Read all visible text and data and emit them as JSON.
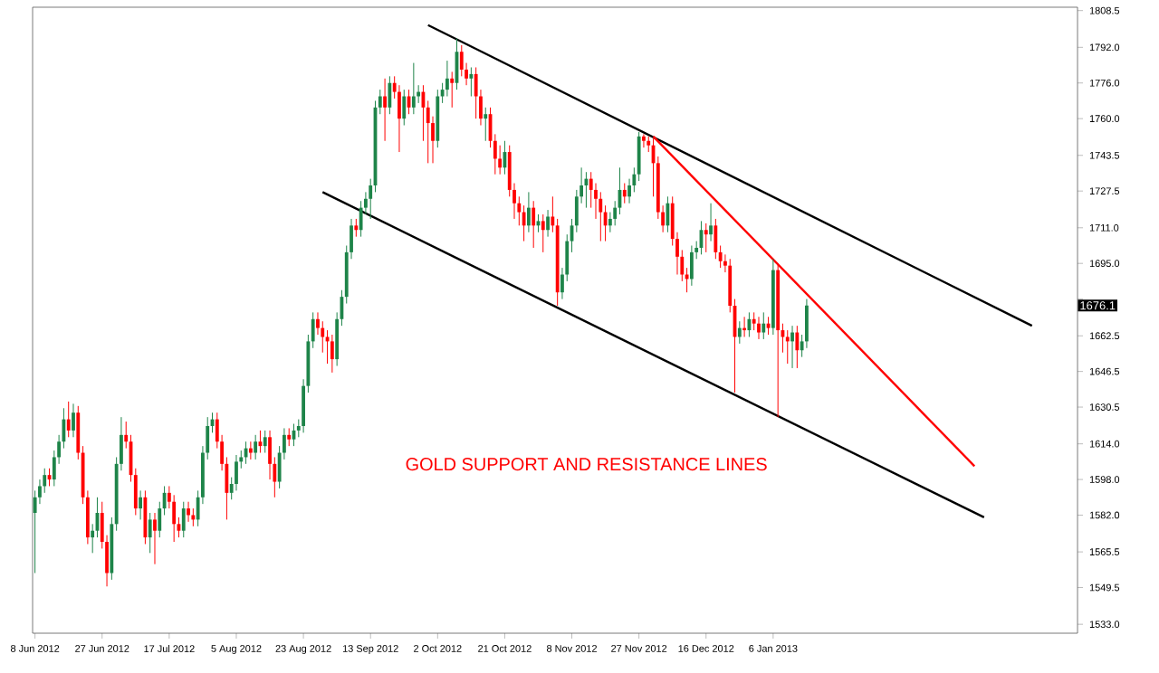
{
  "chart_data": {
    "type": "candlestick",
    "annotations": [
      "GOLD SUPPORT AND RESISTANCE LINES",
      {
        "text": "1676.1",
        "y": 1676.1
      }
    ],
    "ylim": [
      1529,
      1810
    ],
    "categories": [
      "8 Jun 2012",
      null,
      null,
      null,
      null,
      null,
      null,
      null,
      null,
      null,
      null,
      null,
      null,
      null,
      "27 Jun 2012",
      null,
      null,
      null,
      null,
      null,
      null,
      null,
      null,
      null,
      null,
      null,
      null,
      null,
      "17 Jul 2012",
      null,
      null,
      null,
      null,
      null,
      null,
      null,
      null,
      null,
      null,
      null,
      null,
      null,
      "5 Aug 2012",
      null,
      null,
      null,
      null,
      null,
      null,
      null,
      null,
      null,
      null,
      null,
      null,
      null,
      "23 Aug 2012",
      null,
      null,
      null,
      null,
      null,
      null,
      null,
      null,
      null,
      null,
      null,
      null,
      null,
      "13 Sep 2012",
      null,
      null,
      null,
      null,
      null,
      null,
      null,
      null,
      null,
      null,
      null,
      null,
      null,
      "2 Oct 2012",
      null,
      null,
      null,
      null,
      null,
      null,
      null,
      null,
      null,
      null,
      null,
      null,
      null,
      "21 Oct 2012",
      null,
      null,
      null,
      null,
      null,
      null,
      null,
      null,
      null,
      null,
      null,
      null,
      null,
      "8 Nov 2012",
      null,
      null,
      null,
      null,
      null,
      null,
      null,
      null,
      null,
      null,
      null,
      null,
      null,
      "27 Nov 2012",
      null,
      null,
      null,
      null,
      null,
      null,
      null,
      null,
      null,
      null,
      null,
      null,
      null,
      "16 Dec 2012",
      null,
      null,
      null,
      null,
      null,
      null,
      null,
      null,
      null,
      null,
      null,
      null,
      null,
      "6 Jan 2013",
      null,
      null,
      null,
      null,
      null,
      null,
      null,
      null,
      null,
      null,
      null,
      null,
      null,
      null,
      null,
      null,
      null,
      null,
      null,
      null,
      null,
      null,
      null,
      null,
      null,
      null,
      null,
      null,
      null,
      null,
      null,
      null,
      null,
      null,
      null,
      null,
      null,
      null,
      null,
      null,
      null,
      null,
      null,
      null,
      null,
      null,
      null,
      null,
      null,
      null,
      null,
      null,
      null,
      null,
      null,
      null,
      null,
      null,
      null,
      null,
      null,
      null,
      null
    ],
    "yticks": [
      {
        "value": 1533,
        "label": "1533.0"
      },
      1549.5,
      1565.5,
      {
        "value": 1582,
        "label": "1582.0"
      },
      {
        "value": 1598,
        "label": "1598.0"
      },
      {
        "value": 1614,
        "label": "1614.0"
      },
      1630.5,
      1646.5,
      1662.5,
      {
        "value": 1679,
        "label": null
      },
      {
        "value": 1695,
        "label": "1695.0"
      },
      {
        "value": 1711,
        "label": "1711.0"
      },
      1727.5,
      1743.5,
      {
        "value": 1760,
        "label": "1760.0"
      },
      {
        "value": 1776,
        "label": "1776.0"
      },
      {
        "value": 1792,
        "label": "1792.0"
      },
      1808.5
    ],
    "series": [
      {
        "type": "candlestick",
        "ohlc": [
          [
            1583,
            1593,
            1556,
            1590
          ],
          [
            1590,
            1598,
            1587,
            1595
          ],
          [
            1595,
            1603,
            1592,
            1600
          ],
          [
            1600,
            1603,
            1595,
            1598
          ],
          [
            1598,
            1611,
            1595,
            1608
          ],
          [
            1608,
            1618,
            1605,
            1615
          ],
          [
            1615,
            1630,
            1612,
            1625
          ],
          [
            1625,
            1633,
            1617,
            1620
          ],
          [
            1620,
            1632,
            1617,
            1628
          ],
          [
            1628,
            1631,
            1607,
            1610
          ],
          [
            1610,
            1613,
            1587,
            1590
          ],
          [
            1590,
            1593,
            1569,
            1572
          ],
          [
            1572,
            1578,
            1565,
            1575
          ],
          [
            1575,
            1590,
            1572,
            1583
          ],
          [
            1583,
            1588,
            1567,
            1570
          ],
          [
            1570,
            1573,
            1550,
            1556
          ],
          [
            1556,
            1581,
            1553,
            1578
          ],
          [
            1578,
            1608,
            1575,
            1605
          ],
          [
            1605,
            1626,
            1602,
            1618
          ],
          [
            1618,
            1624,
            1612,
            1615
          ],
          [
            1615,
            1618,
            1597,
            1600
          ],
          [
            1600,
            1603,
            1582,
            1585
          ],
          [
            1585,
            1593,
            1580,
            1590
          ],
          [
            1590,
            1593,
            1569,
            1572
          ],
          [
            1572,
            1583,
            1565,
            1580
          ],
          [
            1580,
            1583,
            1560,
            1575
          ],
          [
            1575,
            1588,
            1572,
            1585
          ],
          [
            1585,
            1595,
            1582,
            1592
          ],
          [
            1592,
            1595,
            1585,
            1588
          ],
          [
            1588,
            1591,
            1570,
            1578
          ],
          [
            1578,
            1581,
            1572,
            1575
          ],
          [
            1575,
            1588,
            1572,
            1585
          ],
          [
            1585,
            1588,
            1579,
            1582
          ],
          [
            1582,
            1585,
            1577,
            1580
          ],
          [
            1580,
            1593,
            1577,
            1590
          ],
          [
            1590,
            1613,
            1587,
            1610
          ],
          [
            1610,
            1626,
            1607,
            1622
          ],
          [
            1622,
            1628,
            1619,
            1625
          ],
          [
            1625,
            1628,
            1612,
            1615
          ],
          [
            1615,
            1618,
            1602,
            1605
          ],
          [
            1605,
            1608,
            1580,
            1592
          ],
          [
            1592,
            1599,
            1589,
            1596
          ],
          [
            1596,
            1609,
            1593,
            1606
          ],
          [
            1606,
            1611,
            1603,
            1608
          ],
          [
            1608,
            1615,
            1605,
            1612
          ],
          [
            1612,
            1615,
            1607,
            1610
          ],
          [
            1610,
            1618,
            1607,
            1615
          ],
          [
            1615,
            1620,
            1610,
            1613
          ],
          [
            1613,
            1620,
            1610,
            1617
          ],
          [
            1617,
            1620,
            1598,
            1605
          ],
          [
            1605,
            1608,
            1590,
            1597
          ],
          [
            1597,
            1613,
            1594,
            1610
          ],
          [
            1610,
            1621,
            1607,
            1618
          ],
          [
            1618,
            1621,
            1613,
            1616
          ],
          [
            1616,
            1623,
            1613,
            1620
          ],
          [
            1620,
            1625,
            1617,
            1622
          ],
          [
            1622,
            1643,
            1619,
            1640
          ],
          [
            1640,
            1663,
            1637,
            1660
          ],
          [
            1660,
            1673,
            1657,
            1670
          ],
          [
            1670,
            1673,
            1663,
            1666
          ],
          [
            1666,
            1669,
            1655,
            1662
          ],
          [
            1662,
            1665,
            1650,
            1660
          ],
          [
            1660,
            1663,
            1646,
            1652
          ],
          [
            1652,
            1673,
            1649,
            1670
          ],
          [
            1670,
            1683,
            1667,
            1680
          ],
          [
            1680,
            1703,
            1677,
            1700
          ],
          [
            1700,
            1715,
            1697,
            1712
          ],
          [
            1712,
            1715,
            1707,
            1710
          ],
          [
            1710,
            1723,
            1707,
            1720
          ],
          [
            1720,
            1727,
            1717,
            1724
          ],
          [
            1724,
            1733,
            1715,
            1730
          ],
          [
            1730,
            1768,
            1727,
            1765
          ],
          [
            1765,
            1773,
            1762,
            1770
          ],
          [
            1770,
            1778,
            1750,
            1765
          ],
          [
            1765,
            1779,
            1762,
            1776
          ],
          [
            1776,
            1779,
            1769,
            1772
          ],
          [
            1772,
            1775,
            1745,
            1760
          ],
          [
            1760,
            1773,
            1757,
            1770
          ],
          [
            1770,
            1773,
            1762,
            1765
          ],
          [
            1765,
            1785,
            1762,
            1770
          ],
          [
            1770,
            1775,
            1767,
            1772
          ],
          [
            1772,
            1775,
            1750,
            1765
          ],
          [
            1765,
            1768,
            1740,
            1758
          ],
          [
            1758,
            1761,
            1740,
            1750
          ],
          [
            1750,
            1773,
            1747,
            1770
          ],
          [
            1770,
            1776,
            1767,
            1773
          ],
          [
            1773,
            1786,
            1770,
            1778
          ],
          [
            1778,
            1781,
            1765,
            1776
          ],
          [
            1776,
            1796,
            1773,
            1790
          ],
          [
            1790,
            1793,
            1779,
            1782
          ],
          [
            1782,
            1785,
            1775,
            1778
          ],
          [
            1778,
            1783,
            1770,
            1780
          ],
          [
            1780,
            1783,
            1760,
            1770
          ],
          [
            1770,
            1773,
            1757,
            1760
          ],
          [
            1760,
            1765,
            1750,
            1762
          ],
          [
            1762,
            1765,
            1747,
            1750
          ],
          [
            1750,
            1753,
            1735,
            1742
          ],
          [
            1742,
            1748,
            1735,
            1738
          ],
          [
            1738,
            1750,
            1735,
            1745
          ],
          [
            1745,
            1748,
            1725,
            1728
          ],
          [
            1728,
            1731,
            1715,
            1722
          ],
          [
            1722,
            1725,
            1712,
            1718
          ],
          [
            1718,
            1721,
            1705,
            1712
          ],
          [
            1712,
            1727,
            1709,
            1720
          ],
          [
            1720,
            1723,
            1702,
            1712
          ],
          [
            1712,
            1717,
            1709,
            1714
          ],
          [
            1714,
            1717,
            1700,
            1710
          ],
          [
            1710,
            1719,
            1707,
            1716
          ],
          [
            1716,
            1725,
            1709,
            1712
          ],
          [
            1712,
            1715,
            1676,
            1682
          ],
          [
            1682,
            1693,
            1679,
            1690
          ],
          [
            1690,
            1708,
            1687,
            1705
          ],
          [
            1705,
            1715,
            1700,
            1712
          ],
          [
            1712,
            1728,
            1709,
            1725
          ],
          [
            1725,
            1738,
            1722,
            1730
          ],
          [
            1730,
            1736,
            1720,
            1733
          ],
          [
            1733,
            1736,
            1720,
            1728
          ],
          [
            1728,
            1731,
            1715,
            1724
          ],
          [
            1724,
            1727,
            1705,
            1718
          ],
          [
            1718,
            1721,
            1705,
            1712
          ],
          [
            1712,
            1718,
            1709,
            1715
          ],
          [
            1715,
            1723,
            1712,
            1720
          ],
          [
            1720,
            1738,
            1717,
            1728
          ],
          [
            1728,
            1731,
            1722,
            1725
          ],
          [
            1725,
            1733,
            1722,
            1730
          ],
          [
            1730,
            1738,
            1727,
            1735
          ],
          [
            1735,
            1754,
            1732,
            1752
          ],
          [
            1752,
            1753,
            1747,
            1750
          ],
          [
            1750,
            1752,
            1745,
            1748
          ],
          [
            1748,
            1751,
            1725,
            1740
          ],
          [
            1740,
            1743,
            1715,
            1718
          ],
          [
            1718,
            1721,
            1709,
            1712
          ],
          [
            1712,
            1725,
            1709,
            1722
          ],
          [
            1722,
            1725,
            1703,
            1706
          ],
          [
            1706,
            1709,
            1690,
            1698
          ],
          [
            1698,
            1701,
            1687,
            1690
          ],
          [
            1690,
            1693,
            1682,
            1688
          ],
          [
            1688,
            1703,
            1685,
            1700
          ],
          [
            1700,
            1705,
            1697,
            1702
          ],
          [
            1702,
            1714,
            1699,
            1710
          ],
          [
            1710,
            1713,
            1700,
            1708
          ],
          [
            1708,
            1722,
            1705,
            1712
          ],
          [
            1712,
            1715,
            1697,
            1700
          ],
          [
            1700,
            1703,
            1693,
            1696
          ],
          [
            1696,
            1699,
            1691,
            1694
          ],
          [
            1694,
            1697,
            1673,
            1676
          ],
          [
            1676,
            1679,
            1637,
            1662
          ],
          [
            1662,
            1669,
            1659,
            1666
          ],
          [
            1666,
            1671,
            1662,
            1665
          ],
          [
            1665,
            1673,
            1662,
            1670
          ],
          [
            1670,
            1673,
            1665,
            1668
          ],
          [
            1668,
            1671,
            1661,
            1664
          ],
          [
            1664,
            1673,
            1661,
            1668
          ],
          [
            1668,
            1671,
            1663,
            1666
          ],
          [
            1666,
            1697,
            1663,
            1692
          ],
          [
            1692,
            1695,
            1626,
            1665
          ],
          [
            1665,
            1668,
            1655,
            1662
          ],
          [
            1662,
            1665,
            1650,
            1660
          ],
          [
            1660,
            1667,
            1648,
            1664
          ],
          [
            1664,
            1667,
            1648,
            1656
          ],
          [
            1656,
            1663,
            1653,
            1660
          ],
          [
            1660,
            1679,
            1657,
            1676.1
          ],
          null,
          null,
          null,
          null,
          null,
          null,
          null,
          null,
          null,
          null,
          null,
          null,
          null,
          null,
          null,
          null,
          null,
          null,
          null,
          null,
          null,
          null,
          null,
          null,
          null,
          null,
          null,
          null,
          null,
          null,
          null,
          null,
          null,
          null,
          null,
          null,
          null,
          null,
          null,
          null,
          null,
          null,
          null,
          null,
          null,
          null,
          null,
          null,
          null,
          null,
          null,
          null,
          null,
          null,
          null,
          null
        ],
        "colors": [
          "#1e8449",
          "#1e8449",
          "#1e8449",
          "#ff0000",
          "#1e8449",
          "#1e8449",
          "#1e8449",
          "#ff0000",
          "#1e8449",
          "#ff0000",
          "#ff0000",
          "#ff0000",
          "#1e8449",
          "#1e8449",
          "#ff0000",
          "#ff0000",
          "#1e8449",
          "#1e8449",
          "#1e8449",
          "#ff0000",
          "#ff0000",
          "#ff0000",
          "#1e8449",
          "#ff0000",
          "#1e8449",
          "#ff0000",
          "#1e8449",
          "#1e8449",
          "#ff0000",
          "#ff0000",
          "#ff0000",
          "#1e8449",
          "#ff0000",
          "#ff0000",
          "#1e8449",
          "#1e8449",
          "#1e8449",
          "#1e8449",
          "#ff0000",
          "#ff0000",
          "#ff0000",
          "#1e8449",
          "#1e8449",
          "#1e8449",
          "#1e8449",
          "#ff0000",
          "#1e8449",
          "#ff0000",
          "#1e8449",
          "#ff0000",
          "#ff0000",
          "#1e8449",
          "#1e8449",
          "#ff0000",
          "#1e8449",
          "#1e8449",
          "#1e8449",
          "#1e8449",
          "#1e8449",
          "#ff0000",
          "#ff0000",
          "#ff0000",
          "#ff0000",
          "#1e8449",
          "#1e8449",
          "#1e8449",
          "#1e8449",
          "#ff0000",
          "#1e8449",
          "#1e8449",
          "#1e8449",
          "#1e8449",
          "#1e8449",
          "#ff0000",
          "#1e8449",
          "#ff0000",
          "#ff0000",
          "#1e8449",
          "#ff0000",
          "#1e8449",
          "#1e8449",
          "#ff0000",
          "#ff0000",
          "#ff0000",
          "#1e8449",
          "#1e8449",
          "#1e8449",
          "#ff0000",
          "#1e8449",
          "#ff0000",
          "#ff0000",
          "#1e8449",
          "#ff0000",
          "#ff0000",
          "#1e8449",
          "#ff0000",
          "#ff0000",
          "#ff0000",
          "#1e8449",
          "#ff0000",
          "#ff0000",
          "#ff0000",
          "#ff0000",
          "#1e8449",
          "#ff0000",
          "#1e8449",
          "#ff0000",
          "#1e8449",
          "#ff0000",
          "#ff0000",
          "#1e8449",
          "#1e8449",
          "#1e8449",
          "#1e8449",
          "#1e8449",
          "#1e8449",
          "#ff0000",
          "#ff0000",
          "#ff0000",
          "#ff0000",
          "#1e8449",
          "#1e8449",
          "#1e8449",
          "#ff0000",
          "#1e8449",
          "#1e8449",
          "#1e8449",
          "#ff0000",
          "#ff0000",
          "#ff0000",
          "#ff0000",
          "#ff0000",
          "#1e8449",
          "#ff0000",
          "#ff0000",
          "#ff0000",
          "#ff0000",
          "#1e8449",
          "#1e8449",
          "#1e8449",
          "#ff0000",
          "#1e8449",
          "#ff0000",
          "#ff0000",
          "#ff0000",
          "#ff0000",
          "#ff0000",
          "#1e8449",
          "#ff0000",
          "#1e8449",
          "#ff0000",
          "#ff0000",
          "#1e8449",
          "#ff0000",
          "#1e8449",
          "#ff0000",
          "#ff0000",
          "#ff0000",
          "#1e8449",
          "#ff0000",
          "#1e8449",
          "#1e8449",
          null,
          null,
          null,
          null,
          null,
          null,
          null,
          null,
          null,
          null,
          null,
          null,
          null,
          null,
          null,
          null,
          null,
          null,
          null,
          null,
          null,
          null,
          null,
          null,
          null,
          null,
          null,
          null,
          null,
          null,
          null,
          null,
          null,
          null,
          null,
          null,
          null,
          null,
          null,
          null,
          null,
          null,
          null,
          null,
          null,
          null,
          null,
          null,
          null,
          null,
          null,
          null,
          null,
          null,
          null,
          null
        ]
      },
      {
        "type": "line",
        "color": "#000000",
        "values": [
          null,
          null,
          null,
          null,
          null,
          null,
          null,
          null,
          null,
          null,
          null,
          null,
          null,
          null,
          null,
          null,
          null,
          null,
          null,
          null,
          null,
          null,
          null,
          null,
          null,
          null,
          null,
          null,
          null,
          null,
          null,
          null,
          null,
          null,
          null,
          null,
          null,
          null,
          null,
          null,
          null,
          null,
          null,
          null,
          null,
          null,
          null,
          null,
          null,
          null,
          null,
          null,
          null,
          null,
          null,
          null,
          null,
          null,
          null,
          null,
          null,
          null,
          null,
          null,
          null,
          null,
          null,
          null,
          null,
          null,
          null,
          null,
          null,
          null,
          null,
          null,
          null,
          null,
          null,
          null,
          null,
          null,
          1802,
          null,
          null,
          null,
          null,
          null,
          null,
          null,
          null,
          null,
          null,
          null,
          null,
          null,
          null,
          null,
          null,
          null,
          null,
          null,
          null,
          null,
          null,
          null,
          null,
          null,
          null,
          null,
          null,
          null,
          null,
          null,
          null,
          null,
          null,
          null,
          null,
          null,
          null,
          null,
          null,
          null,
          null,
          null,
          null,
          null,
          null,
          null,
          null,
          null,
          null,
          null,
          null,
          null,
          null,
          null,
          null,
          null,
          null,
          null,
          null,
          null,
          null,
          null,
          null,
          null,
          null,
          null,
          null,
          null,
          null,
          null,
          null,
          null,
          null,
          null,
          null,
          null,
          null,
          null,
          null,
          null,
          null,
          null,
          null,
          null,
          null,
          null,
          null,
          null,
          null,
          null,
          null,
          null,
          null,
          null,
          null,
          null,
          null,
          null,
          null,
          null,
          null,
          null,
          null,
          null,
          null,
          null,
          null,
          null,
          null,
          null,
          null,
          null,
          null,
          null,
          null,
          null,
          null,
          null,
          null,
          null,
          null,
          null,
          null,
          null,
          1667,
          null,
          null,
          null,
          null,
          null,
          null,
          null,
          null,
          null
        ]
      },
      {
        "type": "line",
        "color": "#000000",
        "values": [
          null,
          null,
          null,
          null,
          null,
          null,
          null,
          null,
          null,
          null,
          null,
          null,
          null,
          null,
          null,
          null,
          null,
          null,
          null,
          null,
          null,
          null,
          null,
          null,
          null,
          null,
          null,
          null,
          null,
          null,
          null,
          null,
          null,
          null,
          null,
          null,
          null,
          null,
          null,
          null,
          null,
          null,
          null,
          null,
          null,
          null,
          null,
          null,
          null,
          null,
          null,
          null,
          null,
          null,
          null,
          null,
          null,
          null,
          null,
          null,
          1727,
          null,
          null,
          null,
          null,
          null,
          null,
          null,
          null,
          null,
          null,
          null,
          null,
          null,
          null,
          null,
          null,
          null,
          null,
          null,
          null,
          null,
          null,
          null,
          null,
          null,
          null,
          null,
          null,
          null,
          null,
          null,
          null,
          null,
          null,
          null,
          null,
          null,
          null,
          null,
          null,
          null,
          null,
          null,
          null,
          null,
          null,
          null,
          null,
          null,
          null,
          null,
          null,
          null,
          null,
          null,
          null,
          null,
          null,
          null,
          null,
          null,
          null,
          null,
          null,
          null,
          null,
          null,
          null,
          null,
          null,
          null,
          null,
          null,
          null,
          null,
          null,
          null,
          null,
          null,
          null,
          null,
          null,
          null,
          null,
          null,
          null,
          null,
          null,
          null,
          null,
          null,
          null,
          null,
          null,
          null,
          null,
          null,
          null,
          null,
          null,
          null,
          null,
          null,
          null,
          null,
          null,
          null,
          null,
          null,
          null,
          null,
          null,
          null,
          null,
          null,
          null,
          null,
          null,
          null,
          null,
          null,
          null,
          null,
          null,
          null,
          null,
          null,
          null,
          null,
          null,
          null,
          null,
          null,
          null,
          null,
          null,
          null,
          1581,
          null,
          null,
          null,
          null,
          null,
          null,
          null,
          null,
          null,
          null,
          null,
          null,
          null,
          null,
          null,
          null,
          null,
          null,
          null
        ]
      },
      {
        "type": "line",
        "color": "#ff0000",
        "values": [
          null,
          null,
          null,
          null,
          null,
          null,
          null,
          null,
          null,
          null,
          null,
          null,
          null,
          null,
          null,
          null,
          null,
          null,
          null,
          null,
          null,
          null,
          null,
          null,
          null,
          null,
          null,
          null,
          null,
          null,
          null,
          null,
          null,
          null,
          null,
          null,
          null,
          null,
          null,
          null,
          null,
          null,
          null,
          null,
          null,
          null,
          null,
          null,
          null,
          null,
          null,
          null,
          null,
          null,
          null,
          null,
          null,
          null,
          null,
          null,
          null,
          null,
          null,
          null,
          null,
          null,
          null,
          null,
          null,
          null,
          null,
          null,
          null,
          null,
          null,
          null,
          null,
          null,
          null,
          null,
          null,
          null,
          null,
          null,
          null,
          null,
          null,
          null,
          null,
          null,
          null,
          null,
          null,
          null,
          null,
          null,
          null,
          null,
          null,
          null,
          null,
          null,
          null,
          null,
          null,
          null,
          null,
          null,
          null,
          null,
          null,
          null,
          null,
          null,
          null,
          null,
          null,
          null,
          null,
          null,
          null,
          null,
          null,
          null,
          null,
          null,
          null,
          null,
          null,
          1752,
          null,
          null,
          null,
          null,
          null,
          null,
          null,
          null,
          null,
          null,
          null,
          null,
          null,
          null,
          null,
          null,
          null,
          null,
          null,
          null,
          null,
          null,
          null,
          null,
          null,
          null,
          null,
          null,
          null,
          null,
          null,
          null,
          null,
          null,
          null,
          null,
          null,
          null,
          null,
          null,
          null,
          null,
          null,
          null,
          null,
          null,
          null,
          null,
          null,
          null,
          null,
          null,
          null,
          null,
          null,
          null,
          null,
          null,
          null,
          null,
          null,
          null,
          null,
          null,
          null,
          null,
          1604,
          null,
          null,
          null,
          null,
          null,
          null,
          null,
          null,
          null,
          null,
          null,
          null,
          null,
          null,
          null,
          null,
          null,
          null,
          null,
          null,
          null
        ]
      }
    ]
  }
}
